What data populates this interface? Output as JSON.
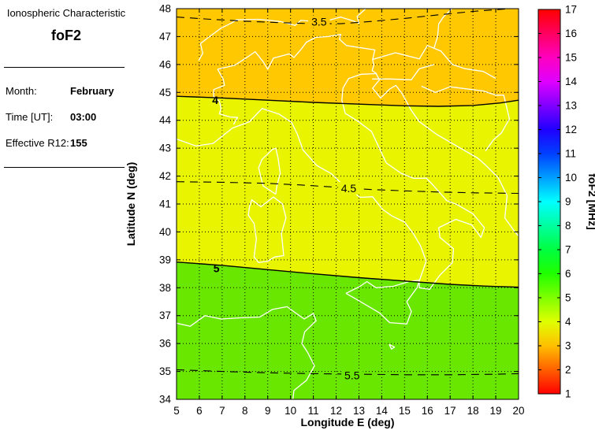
{
  "sidebar": {
    "title": "Ionospheric Characteristic",
    "characteristic": "foF2",
    "fields": [
      {
        "label": "Month:",
        "value": "February"
      },
      {
        "label": "Time [UT]:",
        "value": "03:00"
      },
      {
        "label": "Effective R12:",
        "value": "155"
      }
    ]
  },
  "chart_data": {
    "type": "heatmap",
    "subtype": "filled-contour-map",
    "title": "",
    "xlabel": "Longitude E (deg)",
    "ylabel": "Latitude N (deg)",
    "x_range": [
      5,
      20
    ],
    "y_range": [
      34,
      48
    ],
    "x_ticks": [
      5,
      6,
      7,
      8,
      9,
      10,
      11,
      12,
      13,
      14,
      15,
      16,
      17,
      18,
      19,
      20
    ],
    "y_ticks": [
      34,
      35,
      36,
      37,
      38,
      39,
      40,
      41,
      42,
      43,
      44,
      45,
      46,
      47,
      48
    ],
    "grid": "dotted",
    "grid_color": "#000000",
    "coast_color": "#ffffff",
    "bands": [
      {
        "range": [
          3,
          4
        ],
        "color": "#FFC800"
      },
      {
        "range": [
          4,
          5
        ],
        "color": "#E9F400"
      },
      {
        "range": [
          5,
          6
        ],
        "color": "#6AE700"
      }
    ],
    "contours": [
      {
        "level": 3.5,
        "line": "dashed",
        "label": "3.5",
        "label_lon": 11.25,
        "label_lat": 47.53,
        "points": [
          [
            5,
            47.7
          ],
          [
            6.5,
            47.62
          ],
          [
            8,
            47.55
          ],
          [
            9.5,
            47.5
          ],
          [
            11,
            47.46
          ],
          [
            12.2,
            47.46
          ],
          [
            13.5,
            47.54
          ],
          [
            15,
            47.65
          ],
          [
            16.5,
            47.78
          ],
          [
            18,
            47.9
          ],
          [
            19.3,
            47.98
          ],
          [
            20,
            48.02
          ]
        ]
      },
      {
        "level": 4,
        "line": "solid",
        "label": "4",
        "label_lon": 6.7,
        "label_lat": 44.72,
        "points": [
          [
            5,
            44.86
          ],
          [
            7,
            44.8
          ],
          [
            9,
            44.72
          ],
          [
            11,
            44.64
          ],
          [
            13,
            44.58
          ],
          [
            15,
            44.52
          ],
          [
            16.5,
            44.5
          ],
          [
            18,
            44.53
          ],
          [
            19.2,
            44.62
          ],
          [
            20,
            44.72
          ]
        ]
      },
      {
        "level": 4.5,
        "line": "dashed",
        "label": "4.5",
        "label_lon": 12.55,
        "label_lat": 41.56,
        "points": [
          [
            5,
            41.8
          ],
          [
            7,
            41.78
          ],
          [
            9,
            41.74
          ],
          [
            10.5,
            41.68
          ],
          [
            12,
            41.6
          ],
          [
            13.5,
            41.52
          ],
          [
            15,
            41.47
          ],
          [
            16.5,
            41.43
          ],
          [
            18,
            41.4
          ],
          [
            20,
            41.38
          ]
        ]
      },
      {
        "level": 5,
        "line": "solid",
        "label": "5",
        "label_lon": 6.75,
        "label_lat": 38.7,
        "points": [
          [
            5,
            38.92
          ],
          [
            7,
            38.8
          ],
          [
            9,
            38.65
          ],
          [
            11,
            38.5
          ],
          [
            13,
            38.36
          ],
          [
            15,
            38.24
          ],
          [
            17,
            38.12
          ],
          [
            18.5,
            38.06
          ],
          [
            20,
            38.02
          ]
        ]
      },
      {
        "level": 5.5,
        "line": "dashed",
        "label": "5.5",
        "label_lon": 12.7,
        "label_lat": 34.86,
        "points": [
          [
            5,
            35.06
          ],
          [
            7,
            35.0
          ],
          [
            9,
            34.95
          ],
          [
            11,
            34.92
          ],
          [
            13,
            34.9
          ],
          [
            15,
            34.88
          ],
          [
            17,
            34.88
          ],
          [
            19,
            34.9
          ],
          [
            20,
            34.92
          ]
        ]
      }
    ],
    "colorbar": {
      "label": "foF2 [MHz]",
      "min": 1,
      "max": 17,
      "ticks": [
        1,
        2,
        3,
        4,
        5,
        6,
        7,
        8,
        9,
        10,
        11,
        12,
        13,
        14,
        15,
        16,
        17
      ],
      "colormap": "hsv",
      "stops": [
        [
          1,
          "#FF0000"
        ],
        [
          2,
          "#FF5F00"
        ],
        [
          3,
          "#FFBF00"
        ],
        [
          4,
          "#DFFF00"
        ],
        [
          5,
          "#80FF00"
        ],
        [
          6,
          "#20FF00"
        ],
        [
          7,
          "#00FF40"
        ],
        [
          8,
          "#00FF9F"
        ],
        [
          9,
          "#00FFFF"
        ],
        [
          10,
          "#009FFF"
        ],
        [
          11,
          "#0040FF"
        ],
        [
          12,
          "#2000FF"
        ],
        [
          13,
          "#8000FF"
        ],
        [
          14,
          "#DF00FF"
        ],
        [
          15,
          "#FF00BF"
        ],
        [
          16,
          "#FF0060"
        ],
        [
          17,
          "#FF0000"
        ]
      ]
    },
    "coastlines": [
      [
        [
          5,
          43.33
        ],
        [
          5.85,
          43.08
        ],
        [
          6.6,
          43.17
        ],
        [
          7.45,
          43.72
        ],
        [
          8.2,
          43.95
        ],
        [
          8.75,
          44.42
        ],
        [
          9.5,
          44.22
        ],
        [
          10.05,
          43.92
        ],
        [
          10.3,
          43.5
        ],
        [
          10.55,
          42.93
        ],
        [
          11.15,
          42.38
        ],
        [
          11.8,
          42.08
        ],
        [
          12.25,
          41.72
        ],
        [
          13.05,
          41.24
        ],
        [
          13.6,
          41.26
        ],
        [
          14.05,
          40.8
        ],
        [
          14.45,
          40.57
        ],
        [
          15.0,
          40.35
        ],
        [
          15.35,
          39.98
        ],
        [
          15.7,
          39.5
        ],
        [
          15.95,
          38.95
        ],
        [
          15.65,
          38.25
        ],
        [
          15.65,
          38.0
        ],
        [
          16.1,
          37.94
        ],
        [
          16.55,
          38.45
        ],
        [
          17.1,
          38.9
        ],
        [
          17.15,
          39.4
        ],
        [
          16.55,
          39.8
        ],
        [
          16.5,
          40.15
        ],
        [
          17.25,
          40.45
        ],
        [
          17.95,
          40.25
        ],
        [
          18.35,
          39.8
        ],
        [
          18.5,
          40.15
        ],
        [
          18.0,
          40.65
        ],
        [
          17.3,
          40.98
        ],
        [
          16.85,
          41.12
        ],
        [
          16.2,
          41.72
        ],
        [
          15.95,
          41.93
        ],
        [
          15.4,
          41.92
        ],
        [
          14.85,
          42.1
        ],
        [
          14.2,
          42.47
        ],
        [
          13.55,
          43.6
        ],
        [
          12.95,
          43.97
        ],
        [
          12.4,
          44.25
        ],
        [
          12.25,
          44.72
        ],
        [
          12.3,
          45.15
        ],
        [
          12.55,
          45.5
        ],
        [
          13.1,
          45.65
        ],
        [
          13.75,
          45.67
        ]
      ],
      [
        [
          13.75,
          45.67
        ],
        [
          13.9,
          45.45
        ],
        [
          13.6,
          45.15
        ],
        [
          13.95,
          44.8
        ],
        [
          14.35,
          45.12
        ],
        [
          14.62,
          45.25
        ],
        [
          14.9,
          44.95
        ],
        [
          15.3,
          44.35
        ],
        [
          15.65,
          43.95
        ],
        [
          16.4,
          43.5
        ],
        [
          17.45,
          43.0
        ],
        [
          18.2,
          42.65
        ],
        [
          18.55,
          42.4
        ],
        [
          19.1,
          41.95
        ],
        [
          19.5,
          41.3
        ],
        [
          19.4,
          40.5
        ],
        [
          19.8,
          40.05
        ],
        [
          20,
          39.85
        ]
      ],
      [
        [
          9.35,
          41.35
        ],
        [
          8.8,
          41.65
        ],
        [
          8.7,
          41.95
        ],
        [
          8.6,
          42.3
        ],
        [
          8.75,
          42.6
        ],
        [
          9.2,
          42.95
        ],
        [
          9.35,
          43.0
        ],
        [
          9.45,
          42.65
        ],
        [
          9.55,
          42.1
        ],
        [
          9.4,
          41.65
        ],
        [
          9.35,
          41.35
        ]
      ],
      [
        [
          8.2,
          40.9
        ],
        [
          8.3,
          41.15
        ],
        [
          8.7,
          40.9
        ],
        [
          9.25,
          41.25
        ],
        [
          9.65,
          41.0
        ],
        [
          9.8,
          40.5
        ],
        [
          9.6,
          39.95
        ],
        [
          9.7,
          39.15
        ],
        [
          9.3,
          39.1
        ],
        [
          9.0,
          38.95
        ],
        [
          8.6,
          38.9
        ],
        [
          8.4,
          39.1
        ],
        [
          8.5,
          39.75
        ],
        [
          8.4,
          40.3
        ],
        [
          8.15,
          40.6
        ],
        [
          8.2,
          40.9
        ]
      ],
      [
        [
          12.43,
          37.8
        ],
        [
          13.05,
          38.05
        ],
        [
          13.35,
          38.22
        ],
        [
          13.75,
          38.0
        ],
        [
          14.5,
          38.05
        ],
        [
          15.2,
          38.22
        ],
        [
          15.65,
          38.27
        ],
        [
          15.55,
          38.0
        ],
        [
          15.1,
          37.5
        ],
        [
          15.3,
          37.15
        ],
        [
          15.1,
          36.7
        ],
        [
          14.35,
          36.75
        ],
        [
          13.9,
          37.1
        ],
        [
          12.9,
          37.58
        ],
        [
          12.43,
          37.8
        ]
      ],
      [
        [
          14.33,
          35.97
        ],
        [
          14.56,
          35.87
        ],
        [
          14.43,
          35.8
        ],
        [
          14.33,
          35.97
        ]
      ],
      [
        [
          5,
          36.73
        ],
        [
          5.6,
          36.62
        ],
        [
          6.25,
          37.0
        ],
        [
          6.95,
          36.88
        ],
        [
          7.8,
          36.92
        ],
        [
          8.65,
          36.95
        ],
        [
          9.2,
          37.22
        ],
        [
          9.85,
          37.32
        ],
        [
          10.3,
          37.05
        ],
        [
          10.6,
          36.88
        ],
        [
          11.0,
          37.08
        ],
        [
          11.12,
          36.82
        ],
        [
          10.62,
          36.42
        ],
        [
          10.5,
          36.0
        ],
        [
          10.75,
          35.68
        ],
        [
          11.05,
          35.2
        ],
        [
          10.7,
          34.68
        ],
        [
          10.15,
          34.32
        ],
        [
          10.1,
          34.0
        ]
      ]
    ],
    "borders": [
      [
        [
          5.97,
          46.14
        ],
        [
          6.15,
          46.4
        ],
        [
          6.05,
          46.75
        ],
        [
          6.45,
          47.0
        ],
        [
          6.95,
          47.3
        ],
        [
          7.45,
          47.5
        ],
        [
          7.62,
          47.6
        ],
        [
          8.6,
          47.62
        ],
        [
          9.55,
          47.54
        ],
        [
          10.2,
          47.4
        ],
        [
          10.45,
          47.58
        ],
        [
          11.4,
          47.52
        ],
        [
          12.2,
          47.7
        ],
        [
          12.78,
          47.55
        ],
        [
          13.0,
          47.47
        ],
        [
          12.92,
          47.72
        ],
        [
          13.3,
          48.0
        ]
      ],
      [
        [
          6.8,
          45.83
        ],
        [
          7.55,
          45.97
        ],
        [
          8.1,
          46.26
        ],
        [
          8.45,
          46.46
        ],
        [
          8.8,
          46.1
        ],
        [
          9.0,
          45.83
        ],
        [
          9.25,
          46.23
        ],
        [
          9.95,
          46.38
        ],
        [
          10.15,
          46.25
        ],
        [
          10.45,
          46.53
        ],
        [
          10.7,
          46.8
        ],
        [
          11.1,
          46.97
        ],
        [
          11.65,
          47.0
        ],
        [
          12.2,
          47.08
        ],
        [
          12.15,
          46.9
        ],
        [
          12.45,
          46.68
        ],
        [
          13.7,
          46.52
        ],
        [
          13.6,
          46.18
        ],
        [
          13.65,
          45.97
        ],
        [
          13.58,
          45.78
        ],
        [
          13.78,
          45.67
        ]
      ],
      [
        [
          6.8,
          45.83
        ],
        [
          7.05,
          45.47
        ],
        [
          7.1,
          45.25
        ],
        [
          6.63,
          45.1
        ],
        [
          6.63,
          44.85
        ],
        [
          6.88,
          44.68
        ],
        [
          6.95,
          44.42
        ],
        [
          6.88,
          44.23
        ],
        [
          7.35,
          44.12
        ],
        [
          7.68,
          44.1
        ],
        [
          7.5,
          43.85
        ]
      ],
      [
        [
          13.6,
          46.18
        ],
        [
          14.6,
          46.42
        ],
        [
          15.65,
          46.2
        ],
        [
          16.0,
          46.68
        ],
        [
          16.6,
          46.48
        ],
        [
          17.1,
          46.0
        ],
        [
          17.65,
          45.85
        ],
        [
          18.45,
          45.75
        ],
        [
          19.0,
          45.5
        ]
      ],
      [
        [
          16.3,
          46.6
        ],
        [
          16.45,
          47.0
        ],
        [
          16.5,
          47.45
        ],
        [
          16.7,
          47.7
        ],
        [
          17.08,
          48.0
        ]
      ],
      [
        [
          15.75,
          45.22
        ],
        [
          16.35,
          45.0
        ],
        [
          17.0,
          45.2
        ],
        [
          18.45,
          45.05
        ],
        [
          19.0,
          44.9
        ],
        [
          19.35,
          44.9
        ],
        [
          19.6,
          44.05
        ],
        [
          19.25,
          43.55
        ],
        [
          18.9,
          43.3
        ],
        [
          18.55,
          42.9
        ]
      ],
      [
        [
          13.58,
          45.48
        ],
        [
          14.35,
          45.48
        ],
        [
          15.3,
          45.45
        ],
        [
          15.65,
          45.85
        ],
        [
          16.3,
          46.0
        ]
      ]
    ]
  }
}
